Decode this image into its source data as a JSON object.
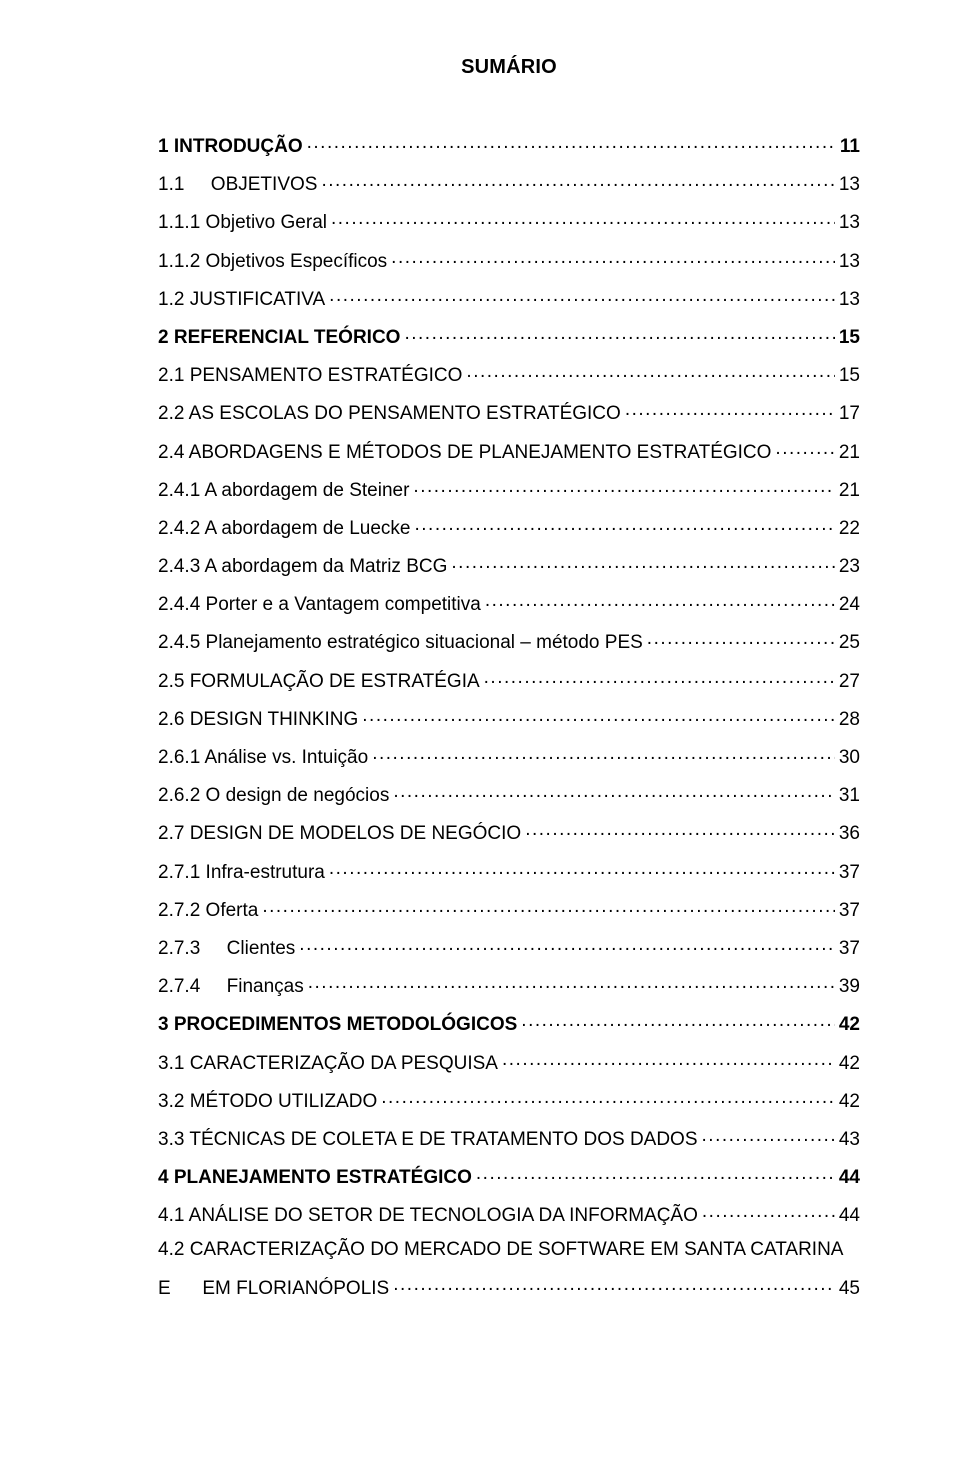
{
  "title": "SUMÁRIO",
  "font": {
    "family": "Arial",
    "size_pt": 14,
    "title_size_pt": 15
  },
  "colors": {
    "text": "#000000",
    "background": "#ffffff"
  },
  "entries": [
    {
      "label": "1 INTRODUÇÃO",
      "page": "11",
      "bold": true
    },
    {
      "label": "1.1     OBJETIVOS",
      "page": "13",
      "bold": false
    },
    {
      "label": "1.1.1 Objetivo Geral",
      "page": "13",
      "bold": false
    },
    {
      "label": "1.1.2 Objetivos Específicos",
      "page": "13",
      "bold": false
    },
    {
      "label": "1.2 JUSTIFICATIVA",
      "page": "13",
      "bold": false
    },
    {
      "label": "2 REFERENCIAL TEÓRICO",
      "page": "15",
      "bold": true
    },
    {
      "label": "2.1 PENSAMENTO ESTRATÉGICO",
      "page": "15",
      "bold": false
    },
    {
      "label": "2.2 AS ESCOLAS DO PENSAMENTO ESTRATÉGICO",
      "page": "17",
      "bold": false
    },
    {
      "label": "2.4 ABORDAGENS E MÉTODOS DE PLANEJAMENTO ESTRATÉGICO",
      "page": "21",
      "bold": false
    },
    {
      "label": "2.4.1 A abordagem de Steiner",
      "page": "21",
      "bold": false
    },
    {
      "label": "2.4.2 A abordagem de Luecke",
      "page": "22",
      "bold": false
    },
    {
      "label": "2.4.3 A abordagem da Matriz BCG",
      "page": "23",
      "bold": false
    },
    {
      "label": "2.4.4 Porter e a Vantagem competitiva",
      "page": "24",
      "bold": false
    },
    {
      "label": "2.4.5 Planejamento estratégico situacional – método PES",
      "page": "25",
      "bold": false
    },
    {
      "label": "2.5 FORMULAÇÃO DE ESTRATÉGIA",
      "page": "27",
      "bold": false
    },
    {
      "label": "2.6 DESIGN THINKING",
      "page": "28",
      "bold": false
    },
    {
      "label": "2.6.1 Análise vs. Intuição",
      "page": "30",
      "bold": false
    },
    {
      "label": "2.6.2 O design de negócios",
      "page": "31",
      "bold": false
    },
    {
      "label": "2.7 DESIGN DE MODELOS DE NEGÓCIO",
      "page": "36",
      "bold": false
    },
    {
      "label": "2.7.1 Infra-estrutura",
      "page": "37",
      "bold": false
    },
    {
      "label": "2.7.2 Oferta",
      "page": "37",
      "bold": false
    },
    {
      "label": "2.7.3     Clientes",
      "page": "37",
      "bold": false
    },
    {
      "label": "2.7.4     Finanças",
      "page": "39",
      "bold": false
    },
    {
      "label": "3 PROCEDIMENTOS METODOLÓGICOS",
      "page": "42",
      "bold": true
    },
    {
      "label": "3.1 CARACTERIZAÇÃO DA PESQUISA",
      "page": "42",
      "bold": false
    },
    {
      "label": "3.2 MÉTODO UTILIZADO",
      "page": "42",
      "bold": false
    },
    {
      "label": "3.3 TÉCNICAS DE COLETA E DE TRATAMENTO DOS DADOS",
      "page": "43",
      "bold": false
    },
    {
      "label": "4 PLANEJAMENTO ESTRATÉGICO",
      "page": "44",
      "bold": true
    },
    {
      "label": "4.1 ANÁLISE DO SETOR DE TECNOLOGIA DA INFORMAÇÃO",
      "page": "44",
      "bold": false
    }
  ],
  "wrap_entry": {
    "line1": "4.2 CARACTERIZAÇÃO DO MERCADO DE SOFTWARE EM SANTA CATARINA",
    "line2_label": "E      EM FLORIANÓPOLIS",
    "page": "45",
    "bold": false
  }
}
